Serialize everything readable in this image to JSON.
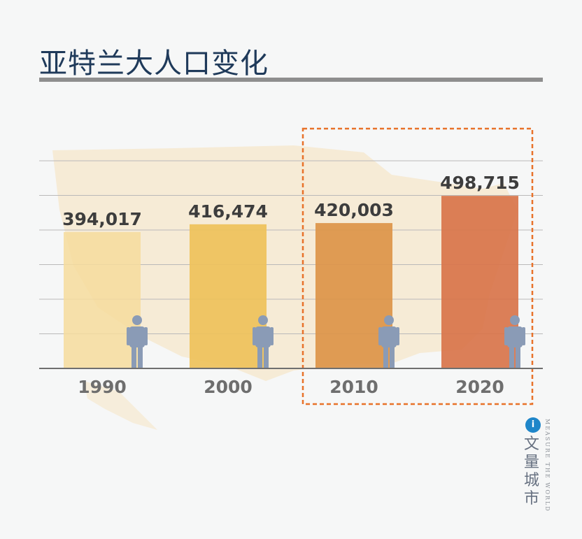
{
  "page": {
    "title": "亚特兰大人口变化"
  },
  "brand": {
    "logo_glyph": "i",
    "name_cn": "文量城市",
    "tagline": "MEASURE THE WORLD",
    "logo_icon": "brand-circle-icon"
  },
  "colors": {
    "title": "#1f3a5a",
    "rule": "#8e8e8e",
    "highlight_border": "#e8722a",
    "person_icon": "#8a9bb6",
    "bars": [
      "#f6dc9c",
      "#eec15a",
      "#dc9448",
      "#d8744a"
    ],
    "map_background": "#f6e6c8"
  },
  "chart_data": {
    "type": "bar",
    "title": "亚特兰大人口变化",
    "categories": [
      "1990",
      "2000",
      "2010",
      "2020"
    ],
    "values": [
      394017,
      416474,
      420003,
      498715
    ],
    "value_labels": [
      "394,017",
      "416,474",
      "420,003",
      "498,715"
    ],
    "ylim": [
      0,
      600000
    ],
    "grid": true,
    "highlighted_categories": [
      "2010",
      "2020"
    ],
    "icon_per_bar": "person-icon"
  }
}
